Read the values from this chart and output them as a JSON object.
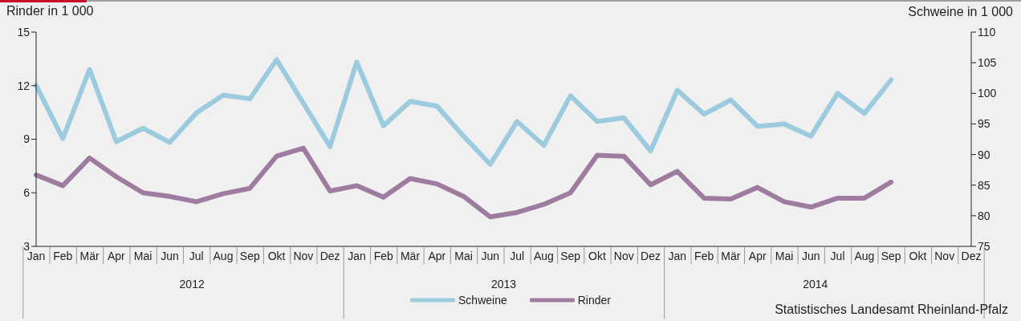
{
  "chart_data": {
    "type": "line",
    "categories": [
      "Jan",
      "Feb",
      "Mär",
      "Apr",
      "Mai",
      "Jun",
      "Jul",
      "Aug",
      "Sep",
      "Okt",
      "Nov",
      "Dez",
      "Jan",
      "Feb",
      "Mär",
      "Apr",
      "Mai",
      "Jun",
      "Jul",
      "Aug",
      "Sep",
      "Okt",
      "Nov",
      "Dez",
      "Jan",
      "Feb",
      "Mär",
      "Apr",
      "Mai",
      "Jun",
      "Jul",
      "Aug",
      "Sep",
      "Okt",
      "Nov",
      "Dez"
    ],
    "ylabel": "Rinder in 1 000",
    "y2label": "Schweine in 1 000",
    "ylim": [
      3,
      15
    ],
    "yticks": [
      3,
      6,
      9,
      12,
      15
    ],
    "y2lim": [
      75,
      110
    ],
    "y2ticks": [
      75,
      80,
      85,
      90,
      95,
      100,
      105,
      110
    ],
    "series": [
      {
        "name": "Schweine",
        "color": "#9ccadf",
        "axis": "y2",
        "values": [
          101.3,
          92.6,
          103.9,
          92.1,
          94.3,
          92.0,
          96.8,
          99.7,
          99.1,
          105.5,
          98.4,
          91.3,
          105.1,
          94.7,
          98.7,
          97.9,
          93.0,
          88.4,
          95.4,
          91.5,
          99.6,
          95.4,
          96.0,
          90.6,
          100.5,
          96.6,
          98.9,
          94.6,
          95.0,
          93.0,
          100.0,
          96.7,
          102.2,
          null,
          null,
          null
        ]
      },
      {
        "name": "Rinder",
        "color": "#9e7ca0",
        "values": [
          7.0,
          6.4,
          7.95,
          6.9,
          6.0,
          5.8,
          5.5,
          5.95,
          6.25,
          8.05,
          8.5,
          6.1,
          6.4,
          5.75,
          6.8,
          6.5,
          5.8,
          4.65,
          4.9,
          5.35,
          6.0,
          8.1,
          8.05,
          6.45,
          7.2,
          5.7,
          5.65,
          6.3,
          5.5,
          5.2,
          5.7,
          5.7,
          6.6,
          null,
          null,
          null
        ]
      }
    ],
    "annotations": [
      "2012",
      "2013",
      "2014",
      "Statistisches Landesamt Rheinland-Pfalz"
    ],
    "legend": "bottom",
    "grid": false,
    "marker": "none",
    "line_style": "solid"
  }
}
